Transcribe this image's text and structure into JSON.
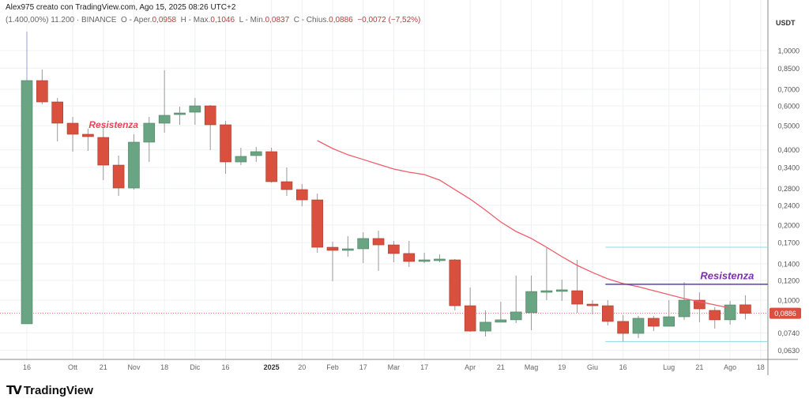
{
  "header": {
    "credit": "Alex975 creato con TradingView.com, Ago 15, 2025 08:26 UTC+2",
    "symbol_overlay": "(1.400,00%) 11.200",
    "exchange": "BINANCE",
    "open_label": "O - Aper.",
    "open": "0,0958",
    "high_label": "H - Max.",
    "high": "0,1046",
    "low_label": "L - Min.",
    "low": "0,0837",
    "close_label": "C - Chius.",
    "close": "0,0886",
    "change": "−0,0072 (−7,52%)"
  },
  "logo": "TradingView",
  "colors": {
    "up": "#6aa583",
    "down": "#d9503f",
    "ma": "#ee5e6b",
    "resistance_line": "#5b3fb5",
    "range_line": "#8fd9e6",
    "resistance_text_left": "#e8465a",
    "resistance_text_right": "#7a2fb3"
  },
  "chart_data": {
    "type": "candlestick",
    "scale": "log",
    "ylim": [
      0.058,
      1.19
    ],
    "y_unit": "USDT",
    "y_ticks": [
      "1,0000",
      "0,8500",
      "0,7000",
      "0,6000",
      "0,5000",
      "0,4000",
      "0,3400",
      "0,2800",
      "0,2400",
      "0,2000",
      "0,1700",
      "0,1400",
      "0,1200",
      "0,1000",
      "0,0740",
      "0,0630"
    ],
    "y_tick_values": [
      1.0,
      0.85,
      0.7,
      0.6,
      0.5,
      0.4,
      0.34,
      0.28,
      0.24,
      0.2,
      0.17,
      0.14,
      0.12,
      0.1,
      0.074,
      0.063
    ],
    "current_price_label": "0,0886",
    "current_price": 0.0886,
    "x_ticks": [
      {
        "i": 0,
        "label": "16"
      },
      {
        "i": 3,
        "label": "Ott"
      },
      {
        "i": 5,
        "label": "21"
      },
      {
        "i": 7,
        "label": "Nov"
      },
      {
        "i": 9,
        "label": "18"
      },
      {
        "i": 11,
        "label": "Dic"
      },
      {
        "i": 13,
        "label": "16"
      },
      {
        "i": 16,
        "label": "2025",
        "bold": true
      },
      {
        "i": 18,
        "label": "20"
      },
      {
        "i": 20,
        "label": "Feb"
      },
      {
        "i": 22,
        "label": "17"
      },
      {
        "i": 24,
        "label": "Mar"
      },
      {
        "i": 26,
        "label": "17"
      },
      {
        "i": 29,
        "label": "Apr"
      },
      {
        "i": 31,
        "label": "21"
      },
      {
        "i": 33,
        "label": "Mag"
      },
      {
        "i": 35,
        "label": "19"
      },
      {
        "i": 37,
        "label": "Giu"
      },
      {
        "i": 39,
        "label": "16"
      },
      {
        "i": 42,
        "label": "Lug"
      },
      {
        "i": 44,
        "label": "21"
      },
      {
        "i": 46,
        "label": "Ago"
      },
      {
        "i": 48,
        "label": "18"
      }
    ],
    "candles": [
      [
        0.0804,
        1.191,
        0.0804,
        0.7582
      ],
      [
        0.7582,
        0.8396,
        0.6092,
        0.6226
      ],
      [
        0.6226,
        0.6457,
        0.4327,
        0.5116
      ],
      [
        0.5116,
        0.5423,
        0.3935,
        0.462
      ],
      [
        0.462,
        0.4862,
        0.3964,
        0.452
      ],
      [
        0.4487,
        0.4969,
        0.3027,
        0.3476
      ],
      [
        0.3476,
        0.3795,
        0.2617,
        0.2814
      ],
      [
        0.2814,
        0.462,
        0.2773,
        0.4295
      ],
      [
        0.4295,
        0.5423,
        0.3579,
        0.5116
      ],
      [
        0.5116,
        0.8336,
        0.4688,
        0.5502
      ],
      [
        0.5542,
        0.596,
        0.5042,
        0.5623
      ],
      [
        0.5664,
        0.6457,
        0.5042,
        0.6004
      ],
      [
        0.6004,
        0.6048,
        0.3993,
        0.5042
      ],
      [
        0.5042,
        0.5229,
        0.3209,
        0.3579
      ],
      [
        0.3579,
        0.4081,
        0.3476,
        0.3767
      ],
      [
        0.3795,
        0.4111,
        0.3579,
        0.3935
      ],
      [
        0.3935,
        0.4081,
        0.2956,
        0.2983
      ],
      [
        0.2983,
        0.3401,
        0.2617,
        0.2773
      ],
      [
        0.2773,
        0.2918,
        0.2379,
        0.2522
      ],
      [
        0.2522,
        0.2674,
        0.1549,
        0.1629
      ],
      [
        0.1629,
        0.1715,
        0.1191,
        0.1583
      ],
      [
        0.1583,
        0.1805,
        0.1493,
        0.1606
      ],
      [
        0.1606,
        0.1871,
        0.1408,
        0.1766
      ],
      [
        0.1766,
        0.1899,
        0.131,
        0.1665
      ],
      [
        0.1665,
        0.1728,
        0.1419,
        0.1538
      ],
      [
        0.1538,
        0.1728,
        0.1358,
        0.1429
      ],
      [
        0.144,
        0.1549,
        0.1408,
        0.145
      ],
      [
        0.1461,
        0.1527,
        0.1419,
        0.1461
      ],
      [
        0.145,
        0.1461,
        0.091,
        0.095
      ],
      [
        0.095,
        0.1124,
        0.0747,
        0.0752
      ],
      [
        0.0752,
        0.091,
        0.0715,
        0.0816
      ],
      [
        0.0816,
        0.0986,
        0.0816,
        0.0834
      ],
      [
        0.0834,
        0.1254,
        0.081,
        0.0897
      ],
      [
        0.089,
        0.1254,
        0.0758,
        0.1083
      ],
      [
        0.1083,
        0.1618,
        0.1,
        0.1091
      ],
      [
        0.11,
        0.1209,
        0.0993,
        0.11
      ],
      [
        0.1091,
        0.145,
        0.089,
        0.0964
      ],
      [
        0.0964,
        0.1,
        0.0877,
        0.095
      ],
      [
        0.095,
        0.1,
        0.0792,
        0.0822
      ],
      [
        0.0822,
        0.0871,
        0.068,
        0.0736
      ],
      [
        0.0736,
        0.0865,
        0.0705,
        0.0846
      ],
      [
        0.0846,
        0.0865,
        0.0752,
        0.0786
      ],
      [
        0.0786,
        0.1,
        0.0786,
        0.0858
      ],
      [
        0.0858,
        0.1182,
        0.0834,
        0.1
      ],
      [
        0.1,
        0.1075,
        0.0816,
        0.0923
      ],
      [
        0.091,
        0.0937,
        0.0769,
        0.0834
      ],
      [
        0.0834,
        0.0993,
        0.0798,
        0.0957
      ],
      [
        0.0958,
        0.1046,
        0.0837,
        0.0886
      ]
    ],
    "moving_average": {
      "start_index": 19,
      "values": [
        0.4358,
        0.4052,
        0.3824,
        0.366,
        0.3502,
        0.3352,
        0.3256,
        0.3186,
        0.3027,
        0.2773,
        0.2541,
        0.2295,
        0.2057,
        0.1885,
        0.1766,
        0.1629,
        0.1493,
        0.1378,
        0.1291,
        0.1217,
        0.1165,
        0.1132,
        0.1091,
        0.1052,
        0.1015,
        0.0986,
        0.0957,
        0.093
      ]
    },
    "annotations": [
      {
        "type": "text",
        "text": "Resistenza",
        "index": 4,
        "price": 0.49,
        "color": "resistance_text_left"
      },
      {
        "type": "hline",
        "price": 0.1629,
        "from_index": 38,
        "color": "range_line"
      },
      {
        "type": "hline",
        "price": 0.1158,
        "from_index": 38,
        "color": "resistance_line"
      },
      {
        "type": "hline",
        "price": 0.0683,
        "from_index": 38,
        "color": "range_line"
      },
      {
        "type": "text",
        "text": "Resistenza",
        "index": 44,
        "price": 0.1215,
        "color": "resistance_text_right"
      }
    ]
  }
}
